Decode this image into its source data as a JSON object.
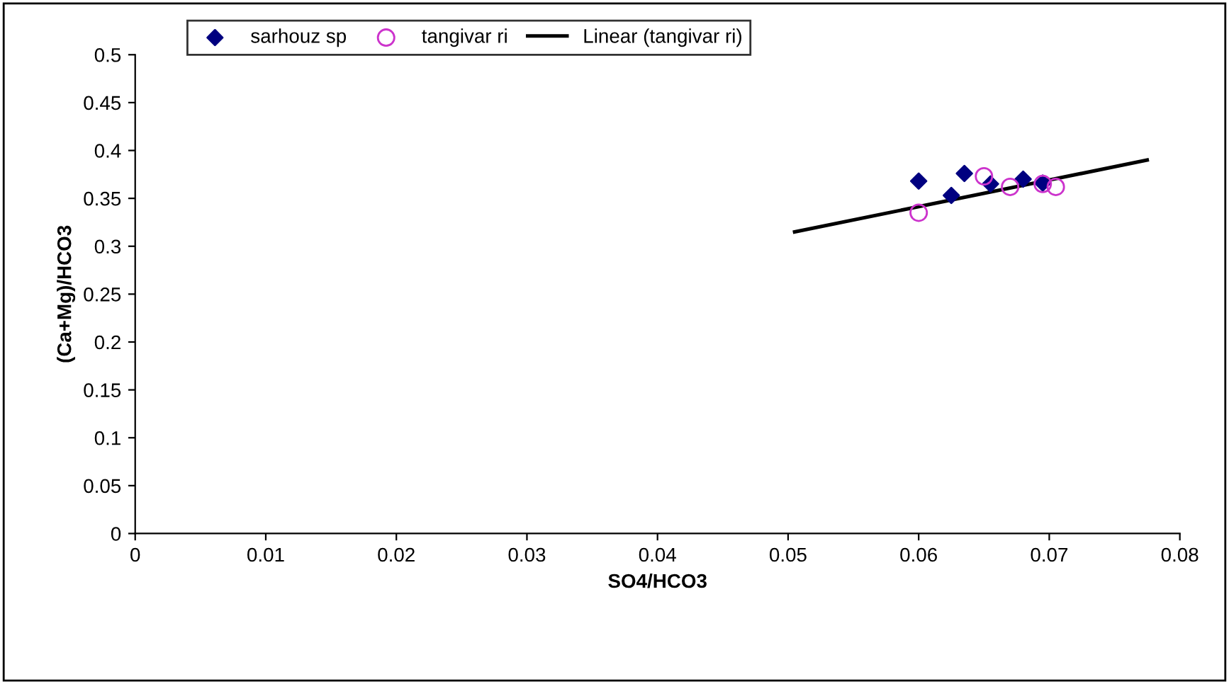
{
  "chart_data": {
    "type": "scatter",
    "xlabel": "SO4/HCO3",
    "ylabel": "(Ca+Mg)/HCO3",
    "xlim": [
      0,
      0.08
    ],
    "xticks": [
      0,
      0.01,
      0.02,
      0.03,
      0.04,
      0.05,
      0.06,
      0.07,
      0.08
    ],
    "ylim": [
      0,
      0.5
    ],
    "yticks": [
      0,
      0.05,
      0.1,
      0.15,
      0.2,
      0.25,
      0.3,
      0.35,
      0.4,
      0.45,
      0.5
    ],
    "grid": false,
    "legend": "top left",
    "series": [
      {
        "name": "sarhouz sp",
        "color": "#000080",
        "marker": "diamond",
        "x": [
          0.06,
          0.0625,
          0.0635,
          0.0655,
          0.068,
          0.0695
        ],
        "values": [
          0.368,
          0.353,
          0.376,
          0.365,
          0.37,
          0.366
        ]
      },
      {
        "name": "tangivar ri",
        "color": "#cc33cc",
        "marker": "circle",
        "x": [
          0.06,
          0.065,
          0.067,
          0.0695,
          0.0705
        ],
        "values": [
          0.335,
          0.373,
          0.362,
          0.365,
          0.362
        ]
      },
      {
        "name": "Linear (tangivar ri)",
        "type": "line",
        "color": "#000000",
        "marker": "none",
        "line_style": "solid",
        "x": [
          0.0505,
          0.0775
        ],
        "values": [
          0.315,
          0.39
        ]
      }
    ]
  }
}
